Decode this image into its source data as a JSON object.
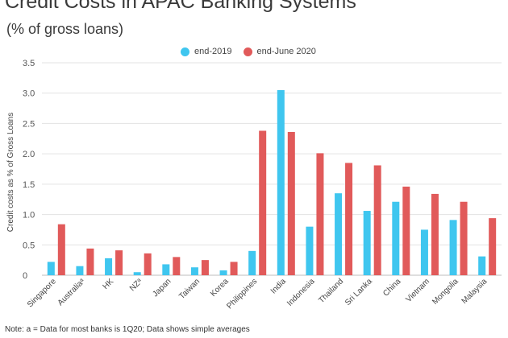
{
  "chart_data": {
    "type": "bar",
    "title": "Credit Costs in APAC Banking Systems",
    "subtitle": "(% of gross loans)",
    "xlabel": "",
    "ylabel": "Credit costs as % of Gross Loans",
    "ylim": [
      0,
      3.5
    ],
    "yticks": [
      "0",
      "0.5",
      "1.0",
      "1.5",
      "2.0",
      "2.5",
      "3.0",
      "3.5"
    ],
    "grid": true,
    "legend_position": "top-center",
    "categories": [
      "Singapore",
      "Australiaᵃ",
      "HK",
      "NZᵃ",
      "Japan",
      "Taiwan",
      "Korea",
      "Philippines",
      "India",
      "Indonesia",
      "Thailand",
      "Sri Lanka",
      "China",
      "Vietnam",
      "Mongolia",
      "Malaysia"
    ],
    "series": [
      {
        "name": "end-2019",
        "color": "#3fc6ef",
        "values": [
          0.22,
          0.15,
          0.28,
          0.05,
          0.18,
          0.13,
          0.08,
          0.4,
          3.05,
          0.8,
          1.35,
          1.06,
          1.21,
          0.75,
          0.91,
          0.31
        ]
      },
      {
        "name": "end-June 2020",
        "color": "#e15a5a",
        "values": [
          0.84,
          0.44,
          0.41,
          0.36,
          0.3,
          0.25,
          0.22,
          2.38,
          2.36,
          2.01,
          1.85,
          1.81,
          1.46,
          1.34,
          1.21,
          0.94
        ]
      }
    ],
    "note": "Note: a = Data for most banks is 1Q20; Data shows simple averages"
  }
}
